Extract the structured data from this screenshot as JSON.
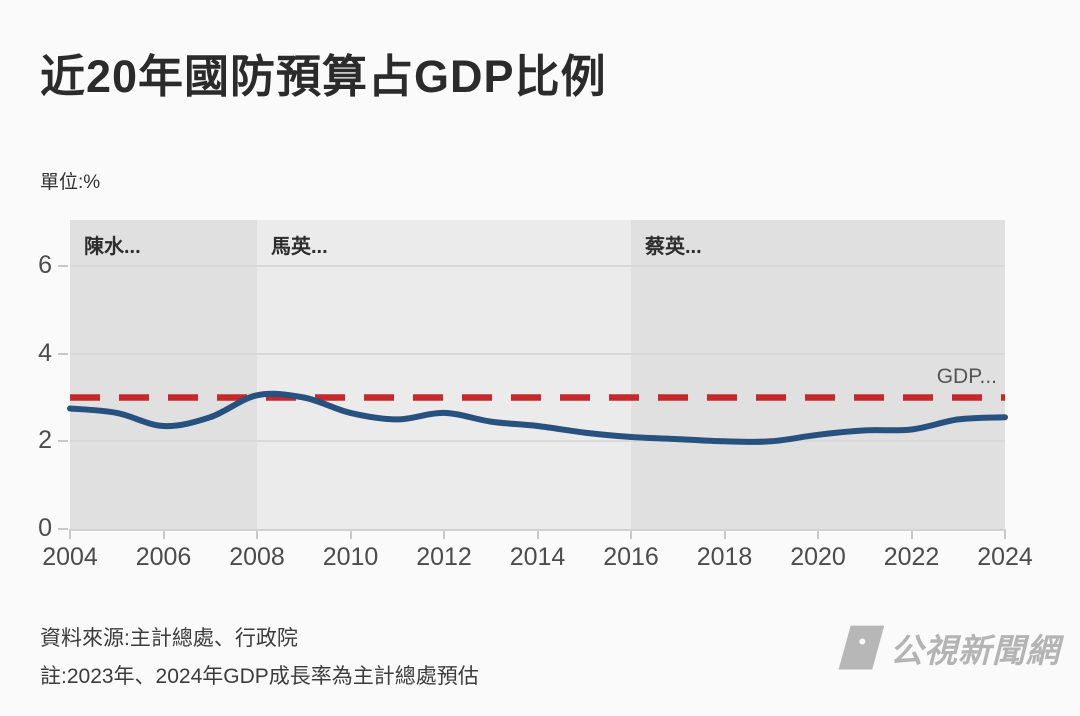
{
  "header": {
    "title": "近20年國防預算占GDP比例",
    "unit_label": "單位:%"
  },
  "chart_data": {
    "type": "line",
    "title": "近20年國防預算占GDP比例",
    "unit": "%",
    "x": [
      2004,
      2005,
      2006,
      2007,
      2008,
      2009,
      2010,
      2011,
      2012,
      2013,
      2014,
      2015,
      2016,
      2017,
      2018,
      2019,
      2020,
      2021,
      2022,
      2023,
      2024
    ],
    "series": [
      {
        "name": "國防預算占GDP比例",
        "color": "#27517e",
        "values": [
          2.75,
          2.65,
          2.35,
          2.55,
          3.05,
          3.0,
          2.65,
          2.5,
          2.65,
          2.45,
          2.35,
          2.2,
          2.1,
          2.05,
          2.0,
          2.0,
          2.15,
          2.25,
          2.27,
          2.5,
          2.55
        ]
      }
    ],
    "reference_line": {
      "label": "GDP...",
      "value": 3,
      "color": "#c4292b",
      "style": "dashed"
    },
    "regions": [
      {
        "label": "陳水...",
        "start": 2004,
        "end": 2008,
        "fill": "#e0e0e0"
      },
      {
        "label": "馬英...",
        "start": 2008,
        "end": 2016,
        "fill": "#ebebeb"
      },
      {
        "label": "蔡英...",
        "start": 2016,
        "end": 2024,
        "fill": "#e0e0e0"
      }
    ],
    "xticks": [
      2004,
      2006,
      2008,
      2010,
      2012,
      2014,
      2016,
      2018,
      2020,
      2022,
      2024
    ],
    "yticks": [
      0,
      2,
      4,
      6
    ],
    "xlim": [
      2004,
      2024
    ],
    "ylim": [
      0,
      7.05
    ],
    "grid": true,
    "legend": "none"
  },
  "footer": {
    "source": "資料來源:主計總處、行政院",
    "note": "註:2023年、2024年GDP成長率為主計總處預估",
    "logo_text": "公視新聞網"
  }
}
